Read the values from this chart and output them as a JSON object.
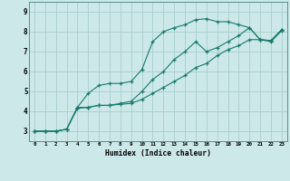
{
  "xlabel": "Humidex (Indice chaleur)",
  "x_values": [
    0,
    1,
    2,
    3,
    4,
    5,
    6,
    7,
    8,
    9,
    10,
    11,
    12,
    13,
    14,
    15,
    16,
    17,
    18,
    19,
    20,
    21,
    22,
    23
  ],
  "line1": [
    3.0,
    3.0,
    3.0,
    3.1,
    4.2,
    4.9,
    5.3,
    5.4,
    5.4,
    5.5,
    6.1,
    7.5,
    8.0,
    8.2,
    8.35,
    8.6,
    8.65,
    8.5,
    8.5,
    8.35,
    8.2,
    7.6,
    7.55,
    8.1
  ],
  "line2": [
    3.0,
    3.0,
    3.0,
    3.1,
    4.2,
    4.2,
    4.3,
    4.3,
    4.4,
    4.5,
    5.0,
    5.6,
    6.0,
    6.6,
    7.0,
    7.5,
    7.0,
    7.2,
    7.5,
    7.8,
    8.2,
    7.6,
    7.55,
    8.1
  ],
  "line3": [
    3.0,
    3.0,
    3.0,
    3.1,
    4.15,
    4.2,
    4.3,
    4.3,
    4.35,
    4.4,
    4.6,
    4.9,
    5.2,
    5.5,
    5.8,
    6.2,
    6.4,
    6.8,
    7.1,
    7.3,
    7.6,
    7.6,
    7.5,
    8.05
  ],
  "line_color": "#1a7a6e",
  "bg_color": "#cce8e8",
  "grid_color": "#aacece",
  "ylim": [
    2.5,
    9.5
  ],
  "xlim": [
    -0.5,
    23.5
  ],
  "yticks": [
    3,
    4,
    5,
    6,
    7,
    8,
    9
  ],
  "xticks": [
    0,
    1,
    2,
    3,
    4,
    5,
    6,
    7,
    8,
    9,
    10,
    11,
    12,
    13,
    14,
    15,
    16,
    17,
    18,
    19,
    20,
    21,
    22,
    23
  ]
}
